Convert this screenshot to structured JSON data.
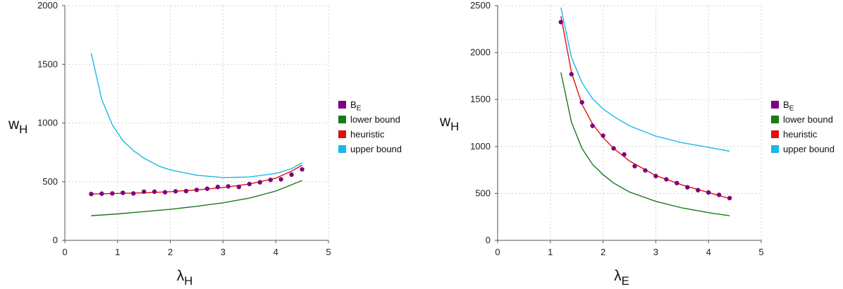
{
  "chart_data": [
    {
      "type": "line",
      "title": "",
      "xlabel": "λ",
      "xlabel_sub": "H",
      "ylabel": "w",
      "ylabel_sub": "H",
      "xlim": [
        0,
        5
      ],
      "ylim": [
        0,
        2000
      ],
      "xticks": [
        "0",
        "1",
        "2",
        "3",
        "4",
        "5"
      ],
      "yticks": [
        "0",
        "500",
        "1000",
        "1500",
        "2000"
      ],
      "grid": true,
      "legend_position": "right",
      "series": [
        {
          "name": "B",
          "name_sub": "E",
          "kind": "scatter",
          "color": "#800080",
          "x": [
            0.5,
            0.7,
            0.9,
            1.1,
            1.3,
            1.5,
            1.7,
            1.9,
            2.1,
            2.3,
            2.5,
            2.7,
            2.9,
            3.1,
            3.3,
            3.5,
            3.7,
            3.9,
            4.1,
            4.3,
            4.5
          ],
          "y": [
            395,
            398,
            400,
            405,
            400,
            415,
            415,
            410,
            418,
            420,
            430,
            440,
            455,
            460,
            455,
            480,
            495,
            515,
            520,
            560,
            605
          ]
        },
        {
          "name": "lower bound",
          "kind": "line",
          "color": "#1a7a1a",
          "x": [
            0.5,
            1.0,
            1.5,
            2.0,
            2.5,
            3.0,
            3.5,
            4.0,
            4.5
          ],
          "y": [
            210,
            225,
            245,
            265,
            290,
            320,
            360,
            420,
            510
          ]
        },
        {
          "name": "heuristic",
          "kind": "line",
          "color": "#e01010",
          "x": [
            0.5,
            1.0,
            1.5,
            2.0,
            2.5,
            3.0,
            3.5,
            4.0,
            4.3,
            4.5
          ],
          "y": [
            395,
            400,
            405,
            415,
            430,
            450,
            480,
            530,
            590,
            640
          ]
        },
        {
          "name": "upper bound",
          "kind": "line",
          "color": "#1bb8e8",
          "x": [
            0.5,
            0.7,
            0.9,
            1.1,
            1.3,
            1.5,
            1.8,
            2.0,
            2.5,
            3.0,
            3.5,
            4.0,
            4.3,
            4.5
          ],
          "y": [
            1595,
            1200,
            985,
            850,
            765,
            700,
            630,
            600,
            555,
            535,
            540,
            570,
            610,
            660
          ]
        }
      ]
    },
    {
      "type": "line",
      "title": "",
      "xlabel": "λ",
      "xlabel_sub": "E",
      "ylabel": "w",
      "ylabel_sub": "H",
      "xlim": [
        0,
        5
      ],
      "ylim": [
        0,
        2500
      ],
      "xticks": [
        "0",
        "1",
        "2",
        "3",
        "4",
        "5"
      ],
      "yticks": [
        "0",
        "500",
        "1000",
        "1500",
        "2000",
        "2500"
      ],
      "grid": true,
      "legend_position": "right",
      "series": [
        {
          "name": "B",
          "name_sub": "E",
          "kind": "scatter",
          "color": "#800080",
          "x": [
            1.2,
            1.4,
            1.6,
            1.8,
            2.0,
            2.2,
            2.4,
            2.6,
            2.8,
            3.0,
            3.2,
            3.4,
            3.6,
            3.8,
            4.0,
            4.2,
            4.4
          ],
          "y": [
            2325,
            1770,
            1470,
            1220,
            1115,
            980,
            915,
            790,
            745,
            685,
            650,
            610,
            565,
            535,
            510,
            485,
            450
          ]
        },
        {
          "name": "lower bound",
          "kind": "line",
          "color": "#1a7a1a",
          "x": [
            1.2,
            1.4,
            1.6,
            1.8,
            2.0,
            2.2,
            2.5,
            3.0,
            3.5,
            4.0,
            4.4
          ],
          "y": [
            1790,
            1260,
            980,
            810,
            700,
            610,
            515,
            415,
            345,
            295,
            262
          ]
        },
        {
          "name": "heuristic",
          "kind": "line",
          "color": "#e01010",
          "x": [
            1.2,
            1.4,
            1.6,
            1.8,
            2.0,
            2.2,
            2.5,
            3.0,
            3.5,
            4.0,
            4.4
          ],
          "y": [
            2390,
            1790,
            1450,
            1240,
            1095,
            980,
            845,
            690,
            590,
            510,
            445
          ]
        },
        {
          "name": "upper bound",
          "kind": "line",
          "color": "#1bb8e8",
          "x": [
            1.2,
            1.4,
            1.6,
            1.8,
            2.0,
            2.2,
            2.5,
            3.0,
            3.5,
            4.0,
            4.4
          ],
          "y": [
            2480,
            1950,
            1680,
            1510,
            1400,
            1320,
            1220,
            1110,
            1040,
            990,
            950
          ]
        }
      ]
    }
  ]
}
